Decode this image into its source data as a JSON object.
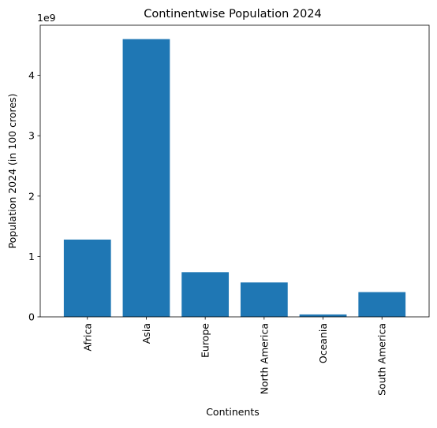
{
  "chart_data": {
    "type": "bar",
    "title": "Continentwise Population 2024",
    "xlabel": "Continents",
    "ylabel": "Population 2024 (in 100 crores)",
    "y_offset_label": "1e9",
    "categories": [
      "Africa",
      "Asia",
      "Europe",
      "North America",
      "Oceania",
      "South America"
    ],
    "values": [
      1280000000,
      4600000000,
      740000000,
      570000000,
      40000000,
      410000000
    ],
    "ylim": [
      0,
      4830000000
    ],
    "yticks": [
      0,
      1000000000,
      2000000000,
      3000000000,
      4000000000
    ],
    "ytick_labels": [
      "0",
      "1",
      "2",
      "3",
      "4"
    ],
    "bar_color": "#1f77b4",
    "grid": false,
    "legend": "none"
  }
}
